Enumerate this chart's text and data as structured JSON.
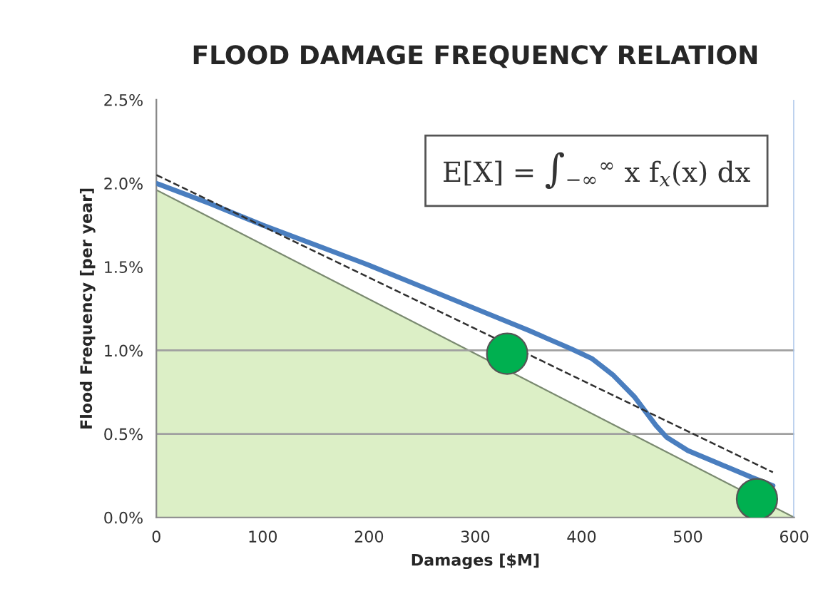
{
  "chart_data": {
    "type": "line",
    "title": "FLOOD DAMAGE FREQUENCY RELATION",
    "xlabel": "Damages [$M]",
    "ylabel": "Flood Frequency [per year]",
    "xlim": [
      0,
      600
    ],
    "xticks": [
      0,
      100,
      200,
      300,
      400,
      500,
      600
    ],
    "ylim": [
      0,
      2.5
    ],
    "yticks": [
      {
        "value": 0,
        "label": "0.0%"
      },
      {
        "value": 0.5,
        "label": "0.5%"
      },
      {
        "value": 1.0,
        "label": "1.0%"
      },
      {
        "value": 1.5,
        "label": "1.5%"
      },
      {
        "value": 2.0,
        "label": "2.0%"
      },
      {
        "value": 2.5,
        "label": "2.5%"
      }
    ],
    "grid": false,
    "legend": false,
    "annotations": [
      "E[X] = ∫$_{−∞}$$^{∞}$ x f$_{x}$(x) dx"
    ],
    "ref_lines": [
      {
        "axis": "y",
        "value": 0.5,
        "color": "#a0a0a0"
      },
      {
        "axis": "y",
        "value": 1.0,
        "color": "#a0a0a0"
      },
      {
        "axis": "x",
        "value": 600,
        "color": "#a9c4e8"
      }
    ],
    "series": [
      {
        "type": "area",
        "color": "#dcefc6",
        "x": [
          0,
          600
        ],
        "values": [
          1.96,
          0
        ]
      },
      {
        "color": "#4a7ebf",
        "line_style": "solid",
        "x": [
          0,
          50,
          100,
          150,
          200,
          250,
          300,
          350,
          390,
          410,
          430,
          450,
          470,
          480,
          500,
          530,
          560,
          580
        ],
        "values": [
          2.0,
          1.88,
          1.75,
          1.63,
          1.51,
          1.38,
          1.25,
          1.12,
          1.01,
          0.95,
          0.85,
          0.72,
          0.55,
          0.48,
          0.4,
          0.32,
          0.24,
          0.19
        ]
      },
      {
        "color": "#303030",
        "line_style": "dashed",
        "x": [
          0,
          580
        ],
        "values": [
          2.05,
          0.27
        ]
      },
      {
        "type": "scatter",
        "color": "#00b050",
        "marker": "circle",
        "x": [
          330,
          565
        ],
        "values": [
          0.98,
          0.11
        ]
      }
    ]
  }
}
